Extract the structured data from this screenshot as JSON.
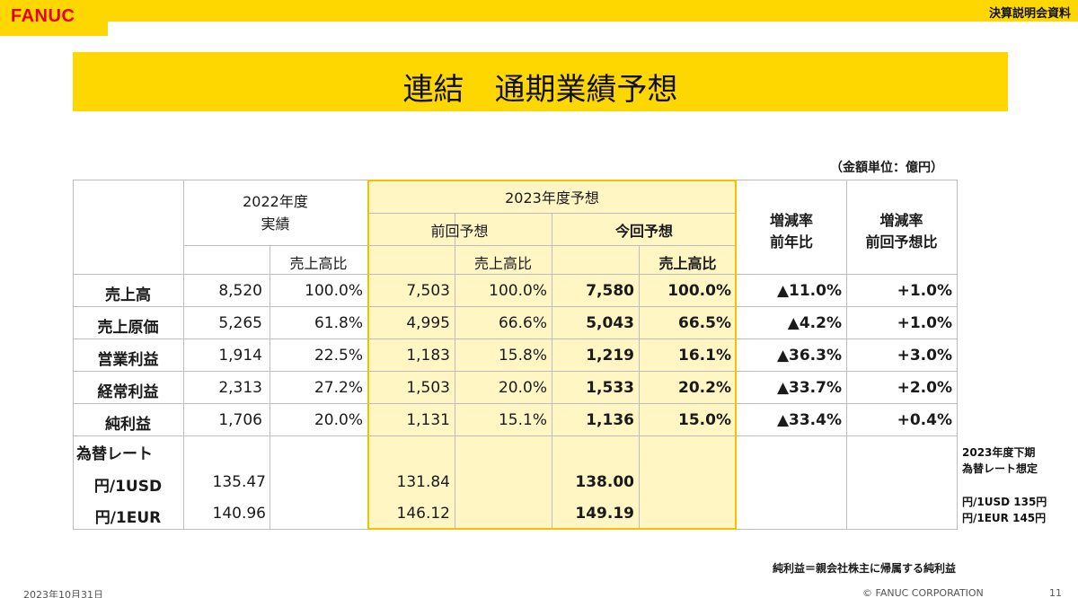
{
  "header": {
    "logo": "FANUC",
    "doc_label": "決算説明会資料"
  },
  "title": "連結　通期業績予想",
  "unit": "（金額単位：億円）",
  "columns": {
    "fy2022": "2022年度",
    "actual": "実績",
    "sales_ratio": "売上高比",
    "fy2023_forecast": "2023年度予想",
    "prev_forecast": "前回予想",
    "curr_forecast": "今回予想",
    "yoy_line1": "増減率",
    "yoy_line2": "前年比",
    "vs_prev_line1": "増減率",
    "vs_prev_line2": "前回予想比"
  },
  "rows": [
    {
      "label": "売上高",
      "a": "8,520",
      "ar": "100.0%",
      "p": "7,503",
      "pr": "100.0%",
      "c": "7,580",
      "cr": "100.0%",
      "yoy": "▲11.0%",
      "vp": "+1.0%"
    },
    {
      "label": "売上原価",
      "a": "5,265",
      "ar": "61.8%",
      "p": "4,995",
      "pr": "66.6%",
      "c": "5,043",
      "cr": "66.5%",
      "yoy": "▲4.2%",
      "vp": "+1.0%"
    },
    {
      "label": "営業利益",
      "a": "1,914",
      "ar": "22.5%",
      "p": "1,183",
      "pr": "15.8%",
      "c": "1,219",
      "cr": "16.1%",
      "yoy": "▲36.3%",
      "vp": "+3.0%"
    },
    {
      "label": "経常利益",
      "a": "2,313",
      "ar": "27.2%",
      "p": "1,503",
      "pr": "20.0%",
      "c": "1,533",
      "cr": "20.2%",
      "yoy": "▲33.7%",
      "vp": "+2.0%"
    },
    {
      "label": "純利益",
      "a": "1,706",
      "ar": "20.0%",
      "p": "1,131",
      "pr": "15.1%",
      "c": "1,136",
      "cr": "15.0%",
      "yoy": "▲33.4%",
      "vp": "+0.4%"
    }
  ],
  "fx": {
    "label": "為替レート",
    "usd": {
      "label": "円/1USD",
      "a": "135.47",
      "p": "131.84",
      "c": "138.00"
    },
    "eur": {
      "label": "円/1EUR",
      "a": "140.96",
      "p": "146.12",
      "c": "149.19"
    }
  },
  "side_note": {
    "line1": "2023年度下期",
    "line2": "為替レート想定",
    "usd": "円/1USD 135円",
    "eur": "円/1EUR 145円"
  },
  "footnote": "純利益＝親会社株主に帰属する純利益",
  "footer": {
    "date": "2023年10月31日",
    "copyright": "© FANUC CORPORATION",
    "page": "11"
  },
  "colors": {
    "brand_yellow": "#ffd700",
    "logo_red": "#e60012",
    "forecast_fill": "#fff6c4",
    "forecast_border": "#f5c000"
  }
}
